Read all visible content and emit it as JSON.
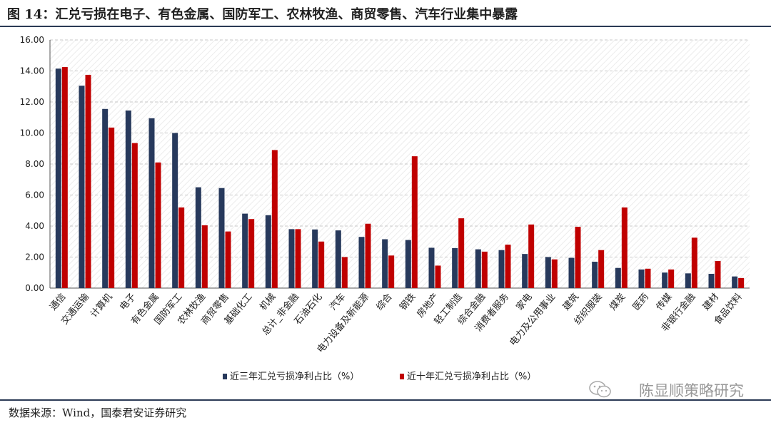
{
  "title": "图 14：汇兑亏损在电子、有色金属、国防军工、农林牧渔、商贸零售、汽车行业集中暴露",
  "source": "数据来源：Wind，国泰君安证券研究",
  "watermark": "陈显顺策略研究",
  "colors": {
    "series1": "#27395c",
    "series2": "#c00000",
    "grid": "#c8c8c8",
    "rule": "#2b3a55"
  },
  "chart_data": {
    "type": "bar",
    "ylim": [
      0,
      16
    ],
    "yticks": [
      "0.00",
      "2.00",
      "4.00",
      "6.00",
      "8.00",
      "10.00",
      "12.00",
      "14.00",
      "16.00"
    ],
    "grid": true,
    "legend_position": "bottom",
    "categories": [
      "通信",
      "交通运输",
      "计算机",
      "电子",
      "有色金属",
      "国防军工",
      "农林牧渔",
      "商贸零售",
      "基础化工",
      "机械",
      "总计_非金融",
      "石油石化",
      "汽车",
      "电力设备及新能源",
      "综合",
      "钢铁",
      "房地产",
      "轻工制造",
      "综合金融",
      "消费者服务",
      "家电",
      "电力及公用事业",
      "建筑",
      "纺织服装",
      "煤炭",
      "医药",
      "传媒",
      "非银行金融",
      "建材",
      "食品饮料"
    ],
    "series": [
      {
        "name": "近三年汇兑亏损净利占比（%）",
        "values": [
          14.15,
          13.05,
          11.55,
          11.45,
          10.95,
          10.0,
          6.5,
          6.45,
          4.8,
          4.7,
          3.8,
          3.78,
          3.72,
          3.3,
          3.15,
          3.1,
          2.6,
          2.58,
          2.5,
          2.45,
          2.2,
          2.0,
          1.95,
          1.7,
          1.3,
          1.2,
          1.0,
          0.95,
          0.92,
          0.75
        ]
      },
      {
        "name": "近十年汇兑亏损净利占比（%）",
        "values": [
          14.25,
          13.75,
          10.35,
          9.35,
          8.1,
          5.2,
          4.05,
          3.65,
          4.45,
          8.9,
          3.8,
          3.0,
          2.0,
          4.15,
          2.1,
          8.5,
          1.45,
          4.5,
          2.35,
          2.8,
          4.1,
          1.85,
          3.95,
          2.45,
          5.2,
          1.25,
          1.2,
          3.25,
          1.75,
          0.65
        ]
      }
    ]
  }
}
